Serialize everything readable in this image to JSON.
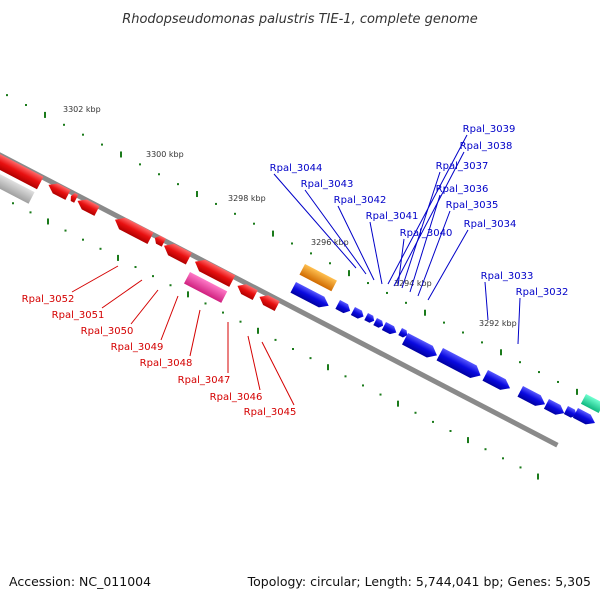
{
  "title": "Rhodopseudomonas palustris TIE-1, complete genome",
  "footer": {
    "accession": "Accession: NC_011004",
    "summary": "Topology: circular; Length: 5,744,041 bp; Genes: 5,305"
  },
  "ticks": [
    "3302 kbp",
    "3300 kbp",
    "3298 kbp",
    "3296 kbp",
    "3294 kbp",
    "3292 kbp"
  ],
  "genes_reverse": [
    "Rpal_3052",
    "Rpal_3051",
    "Rpal_3050",
    "Rpal_3049",
    "Rpal_3048",
    "Rpal_3047",
    "Rpal_3046",
    "Rpal_3045"
  ],
  "genes_forward": [
    "Rpal_3044",
    "Rpal_3043",
    "Rpal_3042",
    "Rpal_3041",
    "Rpal_3040",
    "Rpal_3039",
    "Rpal_3038",
    "Rpal_3037",
    "Rpal_3036",
    "Rpal_3035",
    "Rpal_3034",
    "Rpal_3033",
    "Rpal_3032"
  ],
  "colors": {
    "reverse_strand": "#e81010",
    "forward_strand": "#0a0ae0",
    "pink_feature": "#e82a9a",
    "orange_feature": "#f08a10",
    "teal_feature": "#20e0a8",
    "grey_feature": "#bdbdbd",
    "backbone": "#7a7a7a",
    "tick_dots": "#1a7a1a"
  }
}
